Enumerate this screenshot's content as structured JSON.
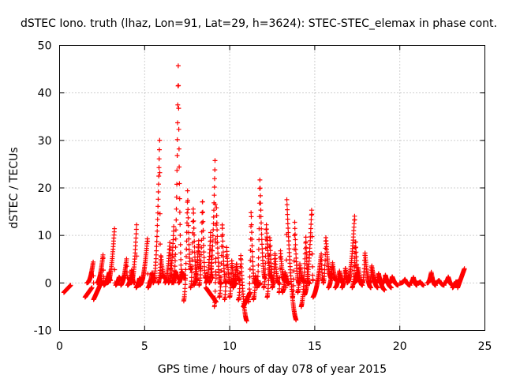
{
  "chart_data": {
    "type": "scatter",
    "title": "dSTEC Iono. truth (lhaz, Lon=91, Lat=29, h=3624): STEC-STEC_elemax in phase cont.",
    "xlabel": "GPS time / hours of day 078 of year 2015",
    "ylabel": "dSTEC  / TECUs",
    "xlim": [
      0,
      25
    ],
    "ylim": [
      -10,
      50
    ],
    "xticks": [
      0,
      5,
      10,
      15,
      20,
      25
    ],
    "yticks": [
      -10,
      0,
      10,
      20,
      30,
      40,
      50
    ],
    "grid": true,
    "marker": "plus",
    "color": "#ff0000",
    "arcs": [
      {
        "t0": 0.25,
        "t1": 0.65,
        "v0": -2.0,
        "v1": -0.5,
        "peak": 0,
        "pt": 0.5
      },
      {
        "t0": 1.5,
        "t1": 1.9,
        "v0": -3.0,
        "v1": -1.0,
        "peak": 0,
        "pt": 0.5
      },
      {
        "t0": 1.6,
        "t1": 2.0,
        "v0": 0.0,
        "v1": 0.0,
        "peak": 4.5,
        "pt": 0.95
      },
      {
        "t0": 2.0,
        "t1": 2.5,
        "v0": -3.5,
        "v1": 0.5,
        "peak": 0,
        "pt": 0.5
      },
      {
        "t0": 2.2,
        "t1": 2.6,
        "v0": 0.0,
        "v1": 1.0,
        "peak": 6.3,
        "pt": 0.9
      },
      {
        "t0": 2.6,
        "t1": 3.0,
        "v0": -0.5,
        "v1": 0.5,
        "peak": 2.5,
        "pt": 0.8
      },
      {
        "t0": 2.8,
        "t1": 3.25,
        "v0": 0.0,
        "v1": 0.0,
        "peak": 11.5,
        "pt": 0.95
      },
      {
        "t0": 3.3,
        "t1": 3.7,
        "v0": -0.5,
        "v1": 1.0,
        "peak": 2.0,
        "pt": 0.5
      },
      {
        "t0": 3.6,
        "t1": 4.0,
        "v0": -0.5,
        "v1": 1.0,
        "peak": 5.3,
        "pt": 0.85
      },
      {
        "t0": 4.0,
        "t1": 4.4,
        "v0": -0.5,
        "v1": 0.0,
        "peak": 3.0,
        "pt": 0.6
      },
      {
        "t0": 4.2,
        "t1": 4.55,
        "v0": 0.0,
        "v1": 0.0,
        "peak": 12.8,
        "pt": 0.95
      },
      {
        "t0": 4.5,
        "t1": 4.9,
        "v0": -1.0,
        "v1": 1.0,
        "peak": 2.0,
        "pt": 0.5
      },
      {
        "t0": 4.7,
        "t1": 5.2,
        "v0": -0.5,
        "v1": 0.0,
        "peak": 9.8,
        "pt": 0.95
      },
      {
        "t0": 5.2,
        "t1": 5.6,
        "v0": -1.0,
        "v1": 1.0,
        "peak": 3.0,
        "pt": 0.6
      },
      {
        "t0": 5.5,
        "t1": 5.95,
        "v0": 0.0,
        "v1": 1.0,
        "peak": 30.8,
        "pt": 0.85
      },
      {
        "t0": 5.8,
        "t1": 6.2,
        "v0": 0.0,
        "v1": 1.0,
        "peak": 6.5,
        "pt": 0.4
      },
      {
        "t0": 6.2,
        "t1": 6.6,
        "v0": 0.0,
        "v1": 1.5,
        "peak": 9.0,
        "pt": 0.7
      },
      {
        "t0": 6.4,
        "t1": 6.75,
        "v0": 0.0,
        "v1": 0.5,
        "peak": 12.0,
        "pt": 0.9
      },
      {
        "t0": 6.6,
        "t1": 7.0,
        "v0": 0.0,
        "v1": 1.0,
        "peak": 2.8,
        "pt": 0.6
      },
      {
        "t0": 6.7,
        "t1": 7.2,
        "v0": 0.0,
        "v1": 1.5,
        "peak": 46.8,
        "pt": 0.55
      },
      {
        "t0": 7.0,
        "t1": 7.4,
        "v0": 0.0,
        "v1": 1.0,
        "peak": 3.0,
        "pt": 0.5
      },
      {
        "t0": 7.3,
        "t1": 7.75,
        "v0": -3.8,
        "v1": 3.0,
        "peak": 22.8,
        "pt": 0.5
      },
      {
        "t0": 7.7,
        "t1": 8.1,
        "v0": -1.0,
        "v1": 0.5,
        "peak": 17.0,
        "pt": 0.4
      },
      {
        "t0": 7.9,
        "t1": 8.3,
        "v0": -0.5,
        "v1": 3.0,
        "peak": 10.0,
        "pt": 0.7
      },
      {
        "t0": 8.2,
        "t1": 8.6,
        "v0": -0.5,
        "v1": 1.0,
        "peak": 19.0,
        "pt": 0.5
      },
      {
        "t0": 8.6,
        "t1": 9.0,
        "v0": 0.0,
        "v1": 1.0,
        "peak": 11.0,
        "pt": 0.7
      },
      {
        "t0": 8.8,
        "t1": 9.2,
        "v0": 0.0,
        "v1": 1.0,
        "peak": 26.0,
        "pt": 0.85
      },
      {
        "t0": 8.6,
        "t1": 9.2,
        "v0": -1.0,
        "v1": -4.0,
        "peak": 0,
        "pt": 0.5
      },
      {
        "t0": 9.1,
        "t1": 9.5,
        "v0": -5.0,
        "v1": 0.0,
        "peak": 19.5,
        "pt": 0.3
      },
      {
        "t0": 9.4,
        "t1": 9.8,
        "v0": -3.0,
        "v1": 0.0,
        "peak": 14.5,
        "pt": 0.4
      },
      {
        "t0": 9.7,
        "t1": 10.1,
        "v0": -3.5,
        "v1": 0.0,
        "peak": 10.0,
        "pt": 0.3
      },
      {
        "t0": 10.0,
        "t1": 10.4,
        "v0": -3.0,
        "v1": 0.0,
        "peak": 6.8,
        "pt": 0.3
      },
      {
        "t0": 10.2,
        "t1": 10.6,
        "v0": -1.0,
        "v1": 0.5,
        "peak": 5.0,
        "pt": 0.5
      },
      {
        "t0": 10.5,
        "t1": 11.0,
        "v0": -3.5,
        "v1": -8.0,
        "peak": 7.5,
        "pt": 0.3
      },
      {
        "t0": 10.8,
        "t1": 11.2,
        "v0": -5.0,
        "v1": -2.0,
        "peak": 0,
        "pt": 0.5
      },
      {
        "t0": 11.1,
        "t1": 11.5,
        "v0": -4.0,
        "v1": 0.0,
        "peak": 17.8,
        "pt": 0.4
      },
      {
        "t0": 11.4,
        "t1": 11.8,
        "v0": -3.5,
        "v1": 0.0,
        "peak": 4.0,
        "pt": 0.3
      },
      {
        "t0": 11.6,
        "t1": 12.1,
        "v0": -1.0,
        "v1": 1.0,
        "peak": 23.5,
        "pt": 0.35
      },
      {
        "t0": 12.0,
        "t1": 12.5,
        "v0": -1.0,
        "v1": 1.0,
        "peak": 14.0,
        "pt": 0.3
      },
      {
        "t0": 12.2,
        "t1": 12.6,
        "v0": -3.0,
        "v1": 0.0,
        "peak": 11.7,
        "pt": 0.4
      },
      {
        "t0": 12.5,
        "t1": 12.9,
        "v0": -1.0,
        "v1": 0.0,
        "peak": 7.0,
        "pt": 0.4
      },
      {
        "t0": 12.9,
        "t1": 13.3,
        "v0": -2.0,
        "v1": 0.5,
        "peak": 9.0,
        "pt": 0.2
      },
      {
        "t0": 13.1,
        "t1": 13.5,
        "v0": -2.0,
        "v1": 0.0,
        "peak": 3.5,
        "pt": 0.4
      },
      {
        "t0": 13.3,
        "t1": 13.9,
        "v0": -1.0,
        "v1": -7.8,
        "peak": 18.2,
        "pt": 0.1
      },
      {
        "t0": 13.7,
        "t1": 14.1,
        "v0": -3.0,
        "v1": 0.0,
        "peak": 15.0,
        "pt": 0.3
      },
      {
        "t0": 14.0,
        "t1": 14.4,
        "v0": -2.0,
        "v1": 0.5,
        "peak": 5.8,
        "pt": 0.3
      },
      {
        "t0": 14.2,
        "t1": 14.7,
        "v0": -5.0,
        "v1": 0.0,
        "peak": 12.0,
        "pt": 0.55
      },
      {
        "t0": 14.4,
        "t1": 14.9,
        "v0": -2.5,
        "v1": 0.5,
        "peak": 16.5,
        "pt": 0.85
      },
      {
        "t0": 14.9,
        "t1": 15.5,
        "v0": -3.0,
        "v1": 0.5,
        "peak": 6.8,
        "pt": 0.8
      },
      {
        "t0": 15.5,
        "t1": 16.0,
        "v0": 0.0,
        "v1": 1.0,
        "peak": 10.5,
        "pt": 0.3
      },
      {
        "t0": 15.8,
        "t1": 16.3,
        "v0": -1.0,
        "v1": 0.5,
        "peak": 5.0,
        "pt": 0.5
      },
      {
        "t0": 16.2,
        "t1": 16.7,
        "v0": -1.0,
        "v1": 0.0,
        "peak": 3.0,
        "pt": 0.5
      },
      {
        "t0": 16.6,
        "t1": 17.0,
        "v0": -1.0,
        "v1": 0.5,
        "peak": 4.0,
        "pt": 0.5
      },
      {
        "t0": 16.9,
        "t1": 17.4,
        "v0": 0.0,
        "v1": 1.0,
        "peak": 14.8,
        "pt": 0.9
      },
      {
        "t0": 17.2,
        "t1": 17.6,
        "v0": -1.0,
        "v1": 0.5,
        "peak": 10.0,
        "pt": 0.5
      },
      {
        "t0": 17.3,
        "t1": 17.8,
        "v0": 0.0,
        "v1": -0.5,
        "peak": 3.5,
        "pt": 0.5
      },
      {
        "t0": 17.8,
        "t1": 18.3,
        "v0": 0.0,
        "v1": -1.0,
        "peak": 6.8,
        "pt": 0.3
      },
      {
        "t0": 18.2,
        "t1": 18.7,
        "v0": 0.0,
        "v1": -1.0,
        "peak": 4.0,
        "pt": 0.3
      },
      {
        "t0": 18.6,
        "t1": 19.1,
        "v0": 0.0,
        "v1": -1.5,
        "peak": 2.5,
        "pt": 0.3
      },
      {
        "t0": 19.0,
        "t1": 19.5,
        "v0": 0.0,
        "v1": -1.0,
        "peak": 2.0,
        "pt": 0.3
      },
      {
        "t0": 19.4,
        "t1": 19.9,
        "v0": 0.0,
        "v1": -0.5,
        "peak": 1.5,
        "pt": 0.3
      },
      {
        "t0": 20.0,
        "t1": 20.6,
        "v0": 0.0,
        "v1": -0.5,
        "peak": 1.0,
        "pt": 0.5
      },
      {
        "t0": 20.6,
        "t1": 21.0,
        "v0": 0.0,
        "v1": -0.5,
        "peak": 1.5,
        "pt": 0.5
      },
      {
        "t0": 21.0,
        "t1": 21.4,
        "v0": 0.0,
        "v1": -0.5,
        "peak": 0.5,
        "pt": 0.5
      },
      {
        "t0": 21.6,
        "t1": 22.1,
        "v0": 0.0,
        "v1": -0.5,
        "peak": 2.5,
        "pt": 0.5
      },
      {
        "t0": 22.0,
        "t1": 22.6,
        "v0": 0.0,
        "v1": -0.5,
        "peak": 0.8,
        "pt": 0.5
      },
      {
        "t0": 22.6,
        "t1": 23.1,
        "v0": 0.0,
        "v1": -0.5,
        "peak": 1.5,
        "pt": 0.5
      },
      {
        "t0": 23.1,
        "t1": 23.5,
        "v0": -1.0,
        "v1": 0.5,
        "peak": 1.0,
        "pt": 0.5
      },
      {
        "t0": 23.4,
        "t1": 23.8,
        "v0": -1.0,
        "v1": 3.0,
        "peak": 0,
        "pt": 0.5
      }
    ]
  }
}
